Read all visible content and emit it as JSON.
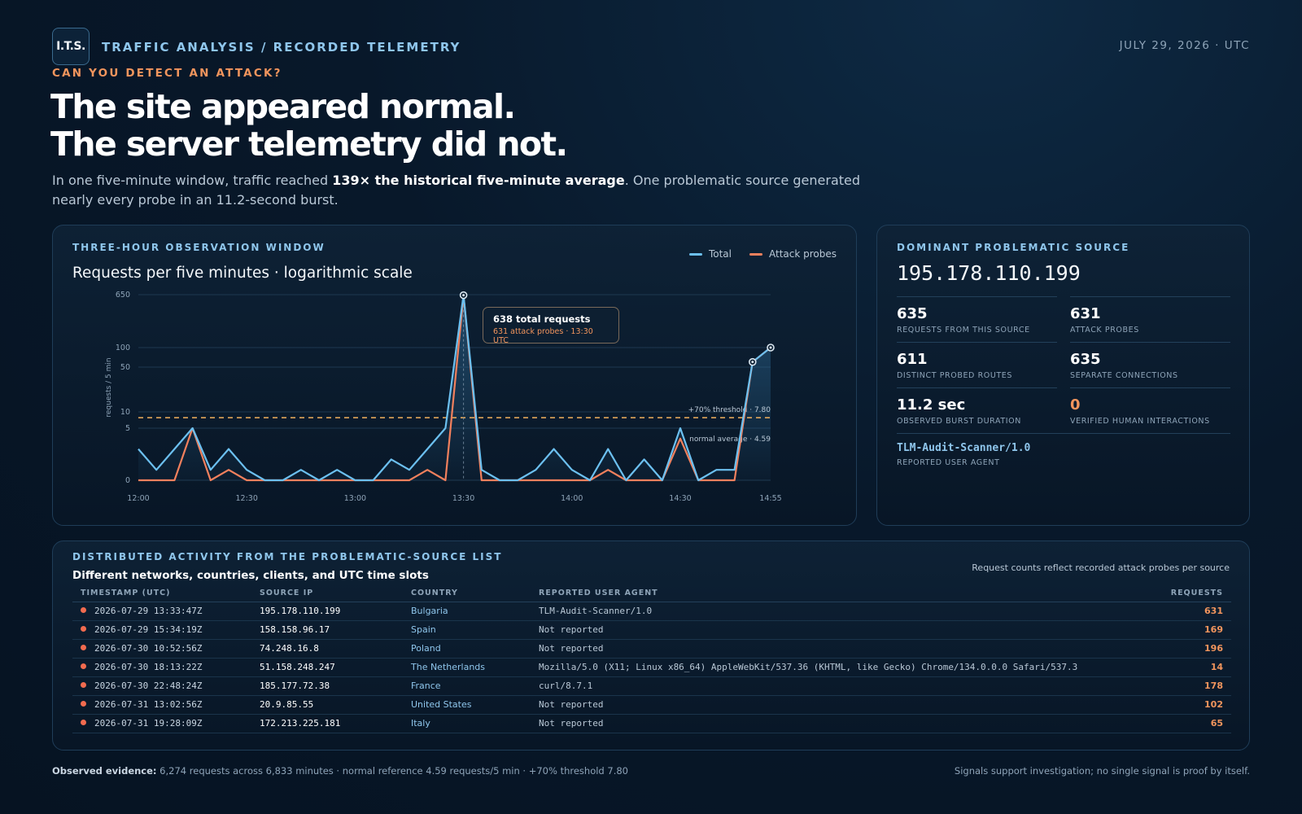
{
  "header": {
    "logo": "I.T.S.",
    "breadcrumb": "TRAFFIC ANALYSIS / RECORDED TELEMETRY",
    "date": "JULY 29, 2026 · UTC",
    "kicker": "CAN YOU DETECT AN ATTACK?",
    "headline_line1": "The site appeared normal.",
    "headline_line2": "The server telemetry did not.",
    "sub_before": "In one five-minute window, traffic reached ",
    "sub_bold": "139× the historical five-minute average",
    "sub_after": ". One problematic source generated nearly every probe in an 11.2-second burst."
  },
  "chart_panel": {
    "label": "THREE-HOUR OBSERVATION WINDOW",
    "title": "Requests per five minutes · logarithmic scale",
    "legend_total": "Total",
    "legend_attack": "Attack probes",
    "tooltip_main": "638 total requests",
    "tooltip_sub": "631 attack probes · 13:30 UTC"
  },
  "chart_data": {
    "type": "line",
    "ylabel": "requests / 5 min",
    "y_scale": "log",
    "y_ticks": [
      0,
      5,
      10,
      50,
      100,
      650
    ],
    "x_ticks": [
      "12:00",
      "12:30",
      "13:00",
      "13:30",
      "14:00",
      "14:30",
      "14:55"
    ],
    "x": [
      "12:00",
      "12:05",
      "12:10",
      "12:15",
      "12:20",
      "12:25",
      "12:30",
      "12:35",
      "12:40",
      "12:45",
      "12:50",
      "12:55",
      "13:00",
      "13:05",
      "13:10",
      "13:15",
      "13:20",
      "13:25",
      "13:30",
      "13:35",
      "13:40",
      "13:45",
      "13:50",
      "13:55",
      "14:00",
      "14:05",
      "14:10",
      "14:15",
      "14:20",
      "14:25",
      "14:30",
      "14:35",
      "14:40",
      "14:45",
      "14:50",
      "14:55"
    ],
    "series": [
      {
        "name": "Total",
        "color": "#6cc0f0",
        "values": [
          3,
          1,
          3,
          5,
          1,
          3,
          1,
          0,
          0,
          1,
          0,
          1,
          0,
          0,
          2,
          1,
          3,
          5,
          638,
          1,
          0,
          0,
          1,
          3,
          1,
          0,
          3,
          0,
          2,
          0,
          5,
          0,
          1,
          1,
          60,
          100
        ]
      },
      {
        "name": "Attack probes",
        "color": "#f2805d",
        "values": [
          0,
          0,
          0,
          5,
          0,
          1,
          0,
          0,
          0,
          0,
          0,
          0,
          0,
          0,
          0,
          0,
          1,
          0,
          631,
          0,
          0,
          0,
          0,
          0,
          0,
          0,
          1,
          0,
          0,
          0,
          4,
          0,
          0,
          0,
          60,
          100
        ]
      }
    ],
    "reference_lines": [
      {
        "label": "+70% threshold · 7.80",
        "value": 7.8
      },
      {
        "label": "normal average · 4.59",
        "value": 4.59
      }
    ],
    "grid": true,
    "legend": "top-right"
  },
  "source_panel": {
    "label": "DOMINANT PROBLEMATIC SOURCE",
    "ip": "195.178.110.199",
    "stats": [
      {
        "value": "635",
        "label": "REQUESTS FROM THIS SOURCE"
      },
      {
        "value": "631",
        "label": "ATTACK PROBES"
      },
      {
        "value": "611",
        "label": "DISTINCT PROBED ROUTES"
      },
      {
        "value": "635",
        "label": "SEPARATE CONNECTIONS"
      },
      {
        "value": "11.2 sec",
        "label": "OBSERVED BURST DURATION"
      },
      {
        "value": "0",
        "label": "VERIFIED HUMAN INTERACTIONS"
      }
    ],
    "ua_value": "TLM-Audit-Scanner/1.0",
    "ua_label": "REPORTED USER AGENT"
  },
  "table_panel": {
    "label": "DISTRIBUTED ACTIVITY FROM THE PROBLEMATIC-SOURCE LIST",
    "title": "Different networks, countries, clients, and UTC time slots",
    "note": "Request counts reflect recorded attack probes per source",
    "columns": [
      "TIMESTAMP (UTC)",
      "SOURCE IP",
      "COUNTRY",
      "REPORTED USER AGENT",
      "REQUESTS"
    ],
    "rows": [
      {
        "ts": "2026-07-29 13:33:47Z",
        "ip": "195.178.110.199",
        "country": "Bulgaria",
        "ua": "TLM-Audit-Scanner/1.0",
        "req": "631"
      },
      {
        "ts": "2026-07-29 15:34:19Z",
        "ip": "158.158.96.17",
        "country": "Spain",
        "ua": "Not reported",
        "req": "169"
      },
      {
        "ts": "2026-07-30 10:52:56Z",
        "ip": "74.248.16.8",
        "country": "Poland",
        "ua": "Not reported",
        "req": "196"
      },
      {
        "ts": "2026-07-30 18:13:22Z",
        "ip": "51.158.248.247",
        "country": "The Netherlands",
        "ua": "Mozilla/5.0 (X11; Linux x86_64) AppleWebKit/537.36 (KHTML, like Gecko) Chrome/134.0.0.0 Safari/537.3",
        "req": "14"
      },
      {
        "ts": "2026-07-30 22:48:24Z",
        "ip": "185.177.72.38",
        "country": "France",
        "ua": "curl/8.7.1",
        "req": "178"
      },
      {
        "ts": "2026-07-31 13:02:56Z",
        "ip": "20.9.85.55",
        "country": "United States",
        "ua": "Not reported",
        "req": "102"
      },
      {
        "ts": "2026-07-31 19:28:09Z",
        "ip": "172.213.225.181",
        "country": "Italy",
        "ua": "Not reported",
        "req": "65"
      }
    ]
  },
  "footer": {
    "left_bold": "Observed evidence:",
    "left_text": " 6,274 requests across 6,833 minutes · normal reference 4.59 requests/5 min · +70% threshold 7.80",
    "right": "Signals support investigation; no single signal is proof by itself."
  }
}
